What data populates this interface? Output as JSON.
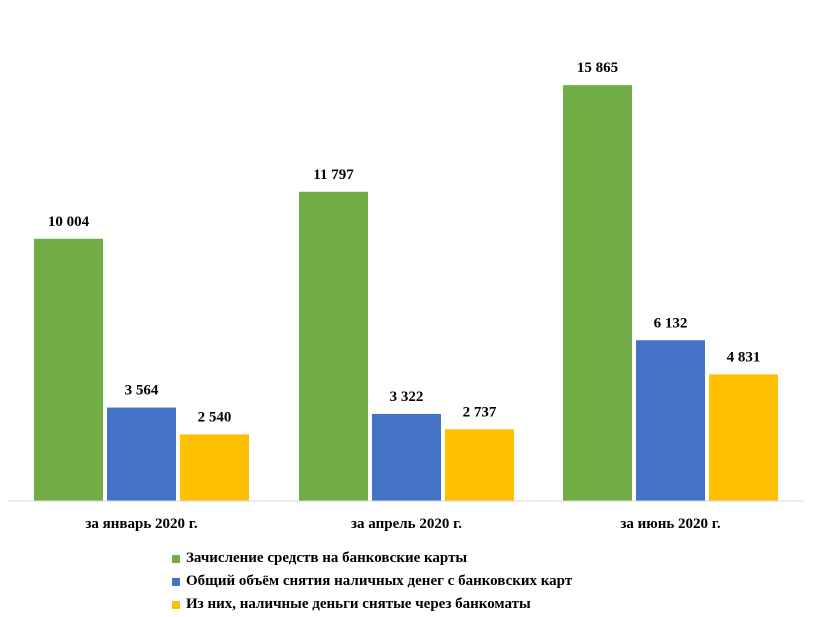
{
  "chart_data": {
    "type": "bar",
    "categories": [
      "за январь 2020 г.",
      "за апрель 2020 г.",
      "за июнь 2020 г."
    ],
    "series": [
      {
        "name": "Зачисление средств на банковские карты",
        "color": "#70AD47",
        "values": [
          10004,
          11797,
          15865
        ],
        "labels": [
          "10 004",
          "11 797",
          "15 865"
        ]
      },
      {
        "name": "Общий объём снятия наличных денег с банковских карт",
        "color": "#4472C4",
        "values": [
          3564,
          3322,
          6132
        ],
        "labels": [
          "3 564",
          "3 322",
          "6 132"
        ]
      },
      {
        "name": "Из них, наличные деньги снятые через банкоматы",
        "color": "#FFC000",
        "values": [
          2540,
          2737,
          4831
        ],
        "labels": [
          "2 540",
          "2 737",
          "4 831"
        ]
      }
    ],
    "ylim": [
      0,
      16900
    ],
    "grid": false,
    "legend_position": "bottom"
  }
}
